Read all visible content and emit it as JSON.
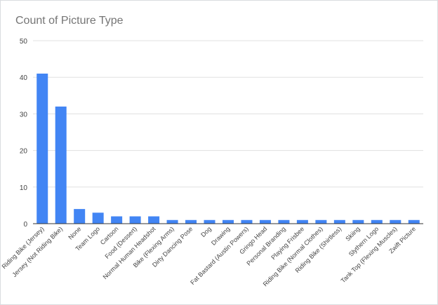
{
  "chart_data": {
    "type": "bar",
    "title": "Count of Picture Type",
    "xlabel": "",
    "ylabel": "",
    "ylim": [
      0,
      50
    ],
    "yticks": [
      0,
      10,
      20,
      30,
      40,
      50
    ],
    "grid": true,
    "legend": "none",
    "bar_color": "#4285f4",
    "categories": [
      "Riding Bike (Jersey)",
      "Jersey (Not Riding Bike)",
      "None",
      "Team Logo",
      "Cartoon",
      "Food (Dessert)",
      "Normal Human Headshot",
      "Bike (Flexing Arms)",
      "Dirty Dancing Pose",
      "Dog",
      "Drawing",
      "Fat Bastard (Austin Powers)",
      "Gringo Head",
      "Personal Branding",
      "Playing Frisbee",
      "Riding Bike (Normal Clothes)",
      "Riding Bike (Shirtless)",
      "Skiing",
      "Slythern Logo",
      "Tank Top (Flexing Muscles)",
      "Zwift Picture"
    ],
    "values": [
      41,
      32,
      4,
      3,
      2,
      2,
      2,
      1,
      1,
      1,
      1,
      1,
      1,
      1,
      1,
      1,
      1,
      1,
      1,
      1,
      1
    ]
  }
}
